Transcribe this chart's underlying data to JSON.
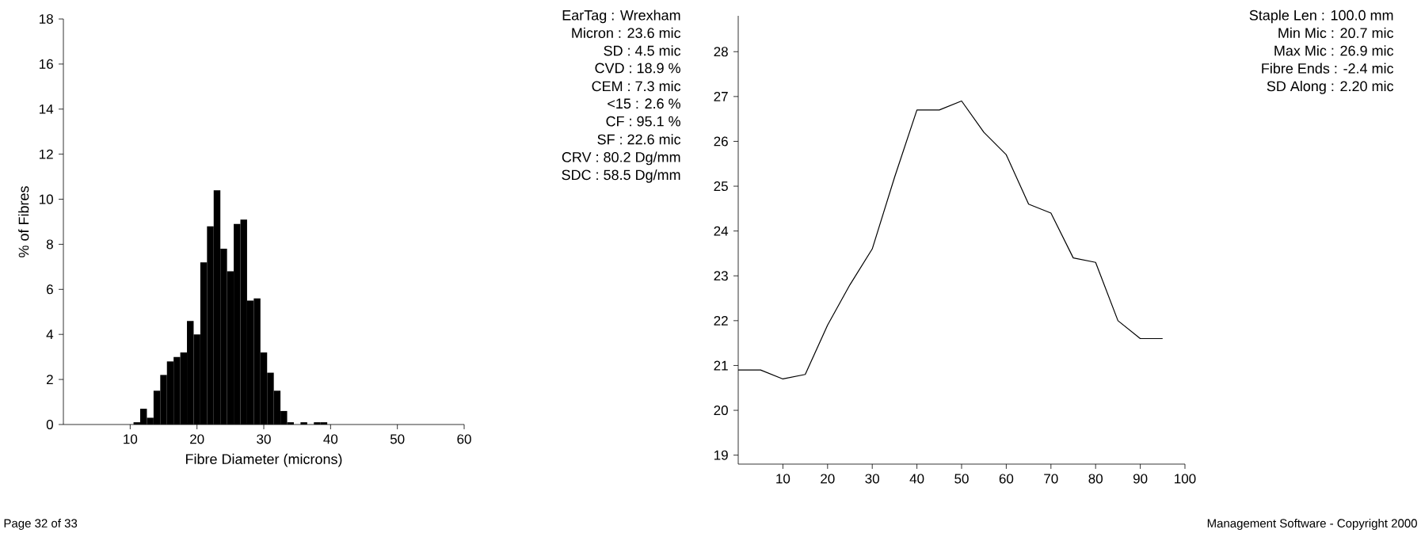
{
  "chart_data": [
    {
      "type": "histogram",
      "xlabel": "Fibre Diameter (microns)",
      "ylabel": "% of Fibres",
      "color": "#000000",
      "bins": [
        10.5,
        11.5,
        12.5,
        13.5,
        14.5,
        15.5,
        16.5,
        17.5,
        18.5,
        19.5,
        20.5,
        21.5,
        22.5,
        23.5,
        24.5,
        25.5,
        26.5,
        27.5,
        28.5,
        29.5,
        30.5,
        31.5,
        32.5,
        33.5,
        34.5,
        35.5,
        36.5,
        37.5,
        38.5,
        39.5
      ],
      "values": [
        0.1,
        0.7,
        0.3,
        1.5,
        2.2,
        2.8,
        3.0,
        3.2,
        4.6,
        4.0,
        7.2,
        8.8,
        10.4,
        7.8,
        6.8,
        8.9,
        9.1,
        5.5,
        5.6,
        3.2,
        2.3,
        1.5,
        0.6,
        0.1,
        0,
        0.1,
        0,
        0.1,
        0.1
      ],
      "xlim": [
        0,
        60
      ],
      "xticks": [
        10,
        20,
        30,
        40,
        50,
        60
      ],
      "ylim": [
        0,
        18
      ],
      "yticks": [
        0,
        2,
        4,
        6,
        8,
        10,
        12,
        14,
        16,
        18
      ],
      "annotations": [
        "EarTag : Wrexham",
        "Micron : 23.6 mic",
        "SD : 4.5 mic",
        "CVD : 18.9 %",
        "CEM : 7.3 mic",
        "<15 : 2.6 %",
        "CF : 95.1 %",
        "SF : 22.6 mic",
        "CRV : 80.2 Dg/mm",
        "SDC : 58.5 Dg/mm",
        "Page 32 of 33"
      ]
    },
    {
      "type": "line",
      "color": "#000000",
      "marker": "none",
      "line_style": "solid",
      "x": [
        0,
        5,
        10,
        15,
        20,
        25,
        30,
        35,
        40,
        45,
        50,
        55,
        60,
        65,
        70,
        75,
        80,
        85,
        90,
        95
      ],
      "values": [
        20.9,
        20.9,
        20.7,
        20.8,
        21.9,
        22.8,
        23.6,
        25.2,
        26.7,
        26.7,
        26.9,
        26.2,
        25.7,
        24.6,
        24.4,
        23.4,
        23.3,
        22.0,
        21.6,
        21.6
      ],
      "xlim": [
        0,
        100
      ],
      "xticks": [
        10,
        20,
        30,
        40,
        50,
        60,
        70,
        80,
        90,
        100
      ],
      "ylim": [
        18.8,
        28.8
      ],
      "yticks": [
        19,
        20,
        21,
        22,
        23,
        24,
        25,
        26,
        27,
        28
      ],
      "annotations": [
        "Staple Len : 100.0 mm",
        "Min Mic : 20.7 mic",
        "Max Mic : 26.9 mic",
        "Fibre Ends : -2.4 mic",
        "SD Along : 2.20 mic",
        "Management Software - Copyright 2000"
      ]
    }
  ]
}
